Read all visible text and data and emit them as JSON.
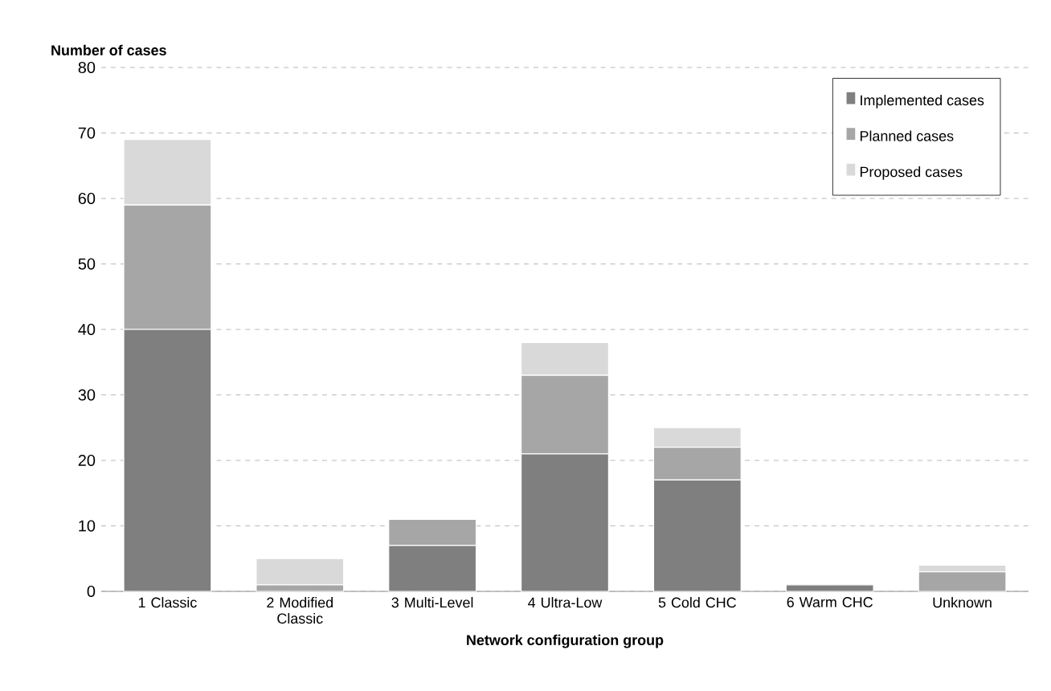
{
  "chart_data": {
    "type": "bar",
    "stacked": true,
    "ylabel": "Number of  cases",
    "xlabel": "Network configuration group",
    "categories": [
      "1 Classic",
      "2 Modified Classic",
      "3 Multi-Level",
      "4 Ultra-Low",
      "5 Cold CHC",
      "6 Warm CHC",
      "Unknown"
    ],
    "series": [
      {
        "name": "Implemented cases",
        "color": "#7f7f7f",
        "values": [
          40,
          0,
          7,
          21,
          17,
          1,
          0
        ]
      },
      {
        "name": "Planned cases",
        "color": "#a6a6a6",
        "values": [
          19,
          1,
          4,
          12,
          5,
          0,
          3
        ]
      },
      {
        "name": "Proposed cases",
        "color": "#d9d9d9",
        "values": [
          10,
          4,
          0,
          5,
          3,
          0,
          1
        ]
      }
    ],
    "ylim": [
      0,
      80
    ],
    "yticks": [
      0,
      10,
      20,
      30,
      40,
      50,
      60,
      70,
      80
    ],
    "grid": "y",
    "legend": "top right"
  }
}
